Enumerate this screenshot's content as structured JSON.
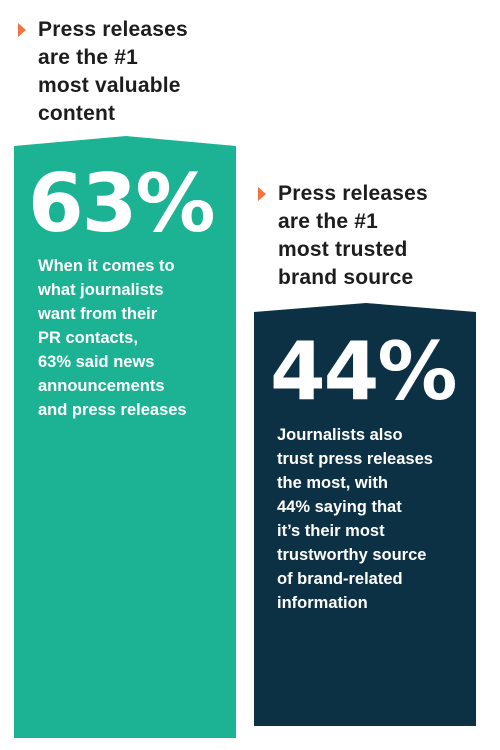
{
  "colors": {
    "teal": "#1bb394",
    "navy": "#0c3144",
    "accent_arrow": "#f2733e",
    "heading_text": "#1d1d1d",
    "panel_text": "#ffffff"
  },
  "left": {
    "heading": [
      "Press releases",
      "are the #1",
      "most valuable",
      "content"
    ],
    "stat": "63%",
    "description": [
      "When it comes to",
      "what journalists",
      "want from their",
      "PR contacts,",
      "63% said news",
      "announcements",
      "and press releases"
    ]
  },
  "right": {
    "heading": [
      "Press releases",
      "are the #1",
      "most trusted",
      "brand source"
    ],
    "stat": "44%",
    "description": [
      "Journalists also",
      "trust press releases",
      "the most, with",
      "44% saying that",
      "it’s their most",
      "trustworthy source",
      "of brand-related",
      "information"
    ]
  },
  "icons": {
    "heading_marker": "triangle-right-icon"
  }
}
